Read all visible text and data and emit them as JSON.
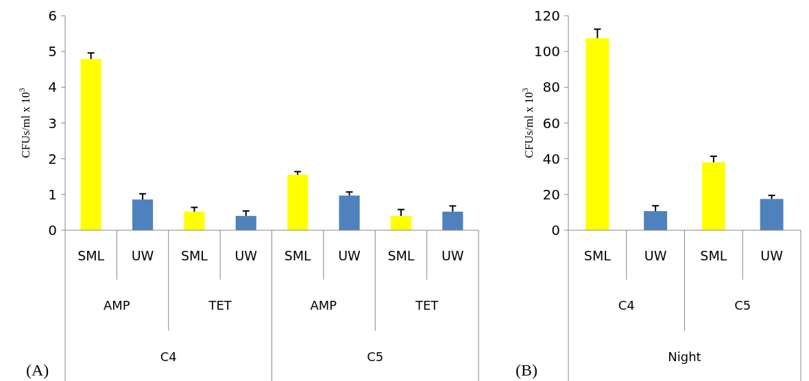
{
  "chart_data": [
    {
      "type": "bar",
      "ylabel": "CFUs/ml x 10$^{3}$",
      "categories": [
        "SML",
        "UW",
        "SML",
        "UW",
        "SML",
        "UW",
        "SML",
        "UW"
      ],
      "values": [
        4.79,
        0.86,
        0.52,
        0.4,
        1.55,
        0.97,
        0.4,
        0.52
      ],
      "errors": [
        0.17,
        0.16,
        0.12,
        0.14,
        0.09,
        0.1,
        0.18,
        0.16
      ],
      "colors": [
        "#ffff00",
        "#4f81bd",
        "#ffff00",
        "#4f81bd",
        "#ffff00",
        "#4f81bd",
        "#ffff00",
        "#4f81bd"
      ],
      "ylim": [
        0,
        6
      ],
      "yticks": [
        0,
        1,
        2,
        3,
        4,
        5,
        6
      ],
      "grid": false,
      "annotations": [
        "AMP",
        "TET",
        "AMP",
        "TET",
        "C4",
        "C5",
        "(A)"
      ]
    },
    {
      "type": "bar",
      "ylabel": "CFUs/ml x 10$^{3}$",
      "categories": [
        "SML",
        "UW",
        "SML",
        "UW"
      ],
      "values": [
        107.5,
        10.7,
        38,
        17.5
      ],
      "errors": [
        5,
        3,
        3.4,
        2
      ],
      "colors": [
        "#ffff00",
        "#4f81bd",
        "#ffff00",
        "#4f81bd"
      ],
      "ylim": [
        0,
        120
      ],
      "yticks": [
        0,
        20,
        40,
        60,
        80,
        100,
        120
      ],
      "grid": false,
      "annotations": [
        "C4",
        "C5",
        "Night",
        "(B)"
      ]
    }
  ]
}
